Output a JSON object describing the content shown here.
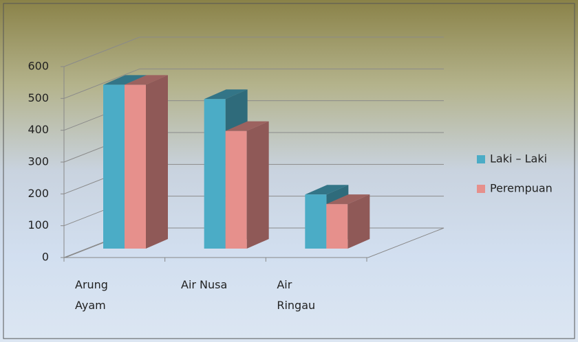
{
  "chart_data": {
    "type": "bar3d",
    "categories": [
      "Arung Ayam",
      "Air Nusa",
      "Air Ringau"
    ],
    "series": [
      {
        "name": "Laki – Laki",
        "color": "#4bacc6",
        "values": [
          515,
          470,
          170
        ]
      },
      {
        "name": "Perempuan",
        "color": "#e6908c",
        "values": [
          515,
          370,
          140
        ]
      }
    ],
    "ylim": [
      0,
      600
    ],
    "yticks": [
      0,
      100,
      200,
      300,
      400,
      500,
      600
    ],
    "grid": true,
    "legend": "right"
  }
}
